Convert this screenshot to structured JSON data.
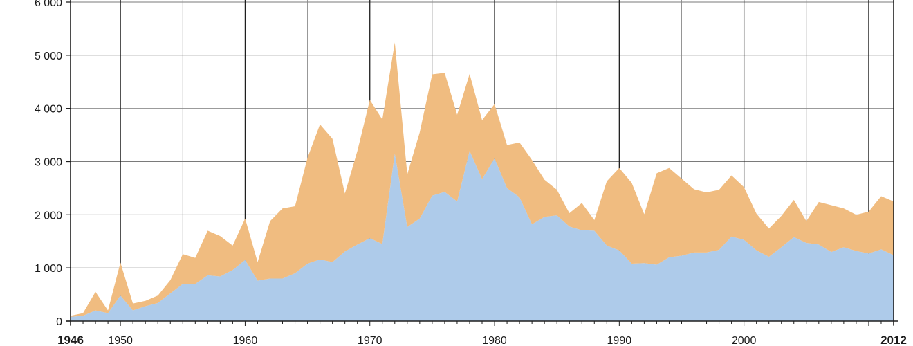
{
  "chart_data": {
    "type": "area",
    "stacked": true,
    "title": "",
    "xlabel": "",
    "ylabel": "",
    "xlim": [
      1946,
      2012
    ],
    "ylim": [
      0,
      6000
    ],
    "y_ticks": [
      0,
      1000,
      2000,
      3000,
      4000,
      5000,
      6000
    ],
    "y_tick_labels": [
      "0",
      "1 000",
      "2 000",
      "3 000",
      "4 000",
      "5 000",
      "6 000"
    ],
    "x_ticks": [
      1946,
      1950,
      1960,
      1970,
      1980,
      1990,
      2000,
      2012
    ],
    "x_tick_labels": [
      "1946",
      "1950",
      "1960",
      "1970",
      "1980",
      "1990",
      "2000",
      "2012"
    ],
    "x_tick_bold": [
      true,
      false,
      false,
      false,
      false,
      false,
      false,
      true
    ],
    "grid": true,
    "major_gridline_years": [
      1950,
      1960,
      1970,
      1980,
      1990,
      2000,
      2010
    ],
    "x": [
      1946,
      1947,
      1948,
      1949,
      1950,
      1951,
      1952,
      1953,
      1954,
      1955,
      1956,
      1957,
      1958,
      1959,
      1960,
      1961,
      1962,
      1963,
      1964,
      1965,
      1966,
      1967,
      1968,
      1969,
      1970,
      1971,
      1972,
      1973,
      1974,
      1975,
      1976,
      1977,
      1978,
      1979,
      1980,
      1981,
      1982,
      1983,
      1984,
      1985,
      1986,
      1987,
      1988,
      1989,
      1990,
      1991,
      1992,
      1993,
      1994,
      1995,
      1996,
      1997,
      1998,
      1999,
      2000,
      2001,
      2002,
      2003,
      2004,
      2005,
      2006,
      2007,
      2008,
      2009,
      2010,
      2011,
      2012
    ],
    "series": [
      {
        "color": "#aecbea",
        "values": [
          80,
          100,
          200,
          150,
          480,
          200,
          280,
          340,
          520,
          700,
          700,
          860,
          840,
          960,
          1150,
          760,
          800,
          800,
          900,
          1080,
          1160,
          1110,
          1310,
          1440,
          1560,
          1450,
          3150,
          1770,
          1930,
          2360,
          2430,
          2250,
          3200,
          2670,
          3060,
          2500,
          2330,
          1820,
          1960,
          1990,
          1780,
          1710,
          1700,
          1420,
          1330,
          1080,
          1090,
          1060,
          1200,
          1230,
          1290,
          1290,
          1340,
          1590,
          1530,
          1330,
          1210,
          1390,
          1580,
          1470,
          1440,
          1300,
          1390,
          1320,
          1270,
          1350,
          1240
        ]
      },
      {
        "color": "#f0bc80",
        "values": [
          20,
          50,
          350,
          50,
          620,
          130,
          100,
          140,
          250,
          560,
          490,
          840,
          760,
          460,
          780,
          350,
          1080,
          1320,
          1260,
          1990,
          2540,
          2320,
          1090,
          1760,
          2600,
          2340,
          2090,
          990,
          1620,
          2280,
          2240,
          1630,
          1450,
          1110,
          1020,
          810,
          1030,
          1210,
          700,
          480,
          250,
          510,
          200,
          1210,
          1550,
          1520,
          920,
          1720,
          1680,
          1450,
          1190,
          1130,
          1130,
          1150,
          990,
          690,
          530,
          590,
          700,
          410,
          800,
          880,
          730,
          680,
          790,
          1000,
          1010
        ]
      }
    ]
  }
}
